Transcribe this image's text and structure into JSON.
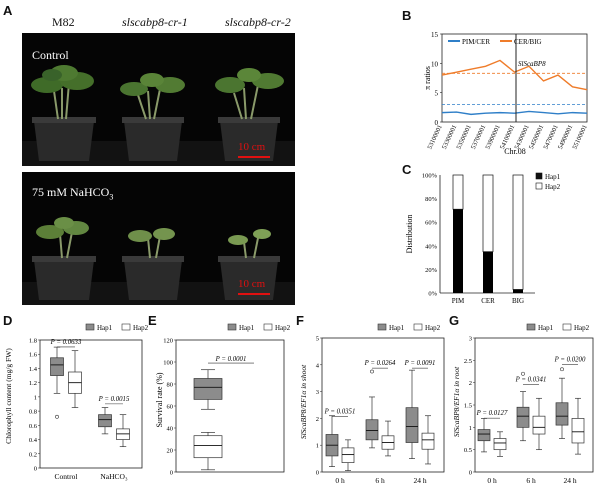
{
  "panels": {
    "A": "A",
    "B": "B",
    "C": "C",
    "D": "D",
    "E": "E",
    "F": "F",
    "G": "G"
  },
  "panelA": {
    "genotypes": [
      "M82",
      "slscabp8-cr-1",
      "slscabp8-cr-2"
    ],
    "control_label": "Control",
    "treatment_label_main": "75 mM NaHCO",
    "treatment_label_sub": "3",
    "scale_bar": "10 cm"
  },
  "panelB": {
    "legend": [
      "PIM/CER",
      "CER/BIG"
    ],
    "ylabel": "π ratios",
    "xlabel": "Chr.08",
    "gene_label": "SlScaBP8",
    "yticks": [
      "0",
      "5",
      "10",
      "15"
    ],
    "xticks": [
      "53100001",
      "53300001",
      "53500001",
      "53700001",
      "53900001",
      "54100001",
      "54300001",
      "54500001",
      "54700001",
      "54900001",
      "55100001"
    ],
    "colors": {
      "pim_cer": "#2f7fc8",
      "cer_big": "#ef7c2a"
    }
  },
  "panelC": {
    "ylabel": "Distribution",
    "legend": [
      "Hap1",
      "Hap2"
    ],
    "yticks": [
      "0%",
      "20%",
      "40%",
      "60%",
      "80%",
      "100%"
    ]
  },
  "panelD": {
    "ylabel": "Chlorophyll content (mg/g FW)",
    "legend": [
      "Hap1",
      "Hap2"
    ],
    "pvalues": [
      "P = 0.0633",
      "P = 0.0015"
    ],
    "groups": [
      "Control",
      "NaHCO₃"
    ],
    "yticks": [
      "0",
      "0.2",
      "0.4",
      "0.6",
      "0.8",
      "1",
      "1.2",
      "1.4",
      "1.6",
      "1.8"
    ]
  },
  "panelE": {
    "ylabel": "Survival rate (%)",
    "legend": [
      "Hap1",
      "Hap2"
    ],
    "pvalue": "P = 0.0001",
    "yticks": [
      "0",
      "20",
      "40",
      "60",
      "80",
      "100",
      "120"
    ]
  },
  "panelF": {
    "ylabel": "SlScaBP8/EF1α in shoot",
    "legend": [
      "Hap1",
      "Hap2"
    ],
    "pvalues": [
      "P = 0.0351",
      "P = 0.0264",
      "P = 0.0091"
    ],
    "groups": [
      "0 h",
      "6 h",
      "24 h"
    ],
    "yticks": [
      "0",
      "1",
      "2",
      "3",
      "4",
      "5"
    ]
  },
  "panelG": {
    "ylabel": "SlScaBP8/EF1α in root",
    "legend": [
      "Hap1",
      "Hap2"
    ],
    "pvalues": [
      "P = 0.0127",
      "P = 0.0341",
      "P = 0.0200"
    ],
    "groups": [
      "0 h",
      "6 h",
      "24 h"
    ],
    "yticks": [
      "0",
      "0.5",
      "1",
      "1.5",
      "2",
      "2.5",
      "3"
    ]
  },
  "chart_data": [
    {
      "type": "line",
      "panel": "B",
      "xlabel": "Chr.08",
      "ylabel": "π ratios",
      "ylim": [
        0,
        15
      ],
      "x": [
        53100001,
        53300001,
        53500001,
        53700001,
        53900001,
        54100001,
        54300001,
        54500001,
        54700001,
        54900001,
        55100001
      ],
      "series": [
        {
          "name": "PIM/CER",
          "values": [
            1.6,
            1.7,
            1.3,
            1.5,
            1.6,
            1.5,
            1.8,
            1.6,
            1.4,
            1.6,
            1.5
          ],
          "threshold": 3.0
        },
        {
          "name": "CER/BIG",
          "values": [
            8.0,
            8.5,
            9.0,
            9.5,
            10.5,
            8.5,
            9.5,
            7.0,
            8.0,
            6.0,
            5.5
          ],
          "threshold": 8.3
        }
      ]
    },
    {
      "type": "bar",
      "panel": "C",
      "ylabel": "Distribution",
      "categories": [
        "PIM",
        "CER",
        "BIG"
      ],
      "series": [
        {
          "name": "Hap1",
          "values": [
            71,
            35,
            3
          ]
        },
        {
          "name": "Hap2",
          "values": [
            29,
            65,
            97
          ]
        }
      ],
      "ylim": [
        0,
        100
      ]
    },
    {
      "type": "box",
      "panel": "D",
      "categories": [
        "Control",
        "NaHCO₃"
      ],
      "series": [
        {
          "name": "Hap1",
          "boxes": [
            [
              1.05,
              1.3,
              1.45,
              1.55,
              1.7
            ],
            [
              0.48,
              0.58,
              0.68,
              0.75,
              0.85
            ]
          ],
          "outliers": [
            [
              0.72
            ],
            []
          ]
        },
        {
          "name": "Hap2",
          "boxes": [
            [
              0.85,
              1.05,
              1.2,
              1.35,
              1.65
            ],
            [
              0.3,
              0.4,
              0.48,
              0.55,
              0.75
            ]
          ],
          "outliers": [
            [],
            []
          ]
        }
      ],
      "ylim": [
        0,
        1.8
      ]
    },
    {
      "type": "box",
      "panel": "E",
      "series": [
        {
          "name": "Hap1",
          "boxes": [
            [
              57,
              66,
              77,
              85,
              93
            ]
          ]
        },
        {
          "name": "Hap2",
          "boxes": [
            [
              2,
              13,
              24,
              33,
              36
            ]
          ]
        }
      ],
      "ylim": [
        0,
        120
      ]
    },
    {
      "type": "box",
      "panel": "F",
      "categories": [
        "0 h",
        "6 h",
        "24 h"
      ],
      "series": [
        {
          "name": "Hap1",
          "boxes": [
            [
              0.2,
              0.6,
              1.0,
              1.4,
              2.1
            ],
            [
              0.9,
              1.2,
              1.55,
              1.95,
              2.8
            ],
            [
              0.5,
              1.1,
              1.7,
              2.4,
              3.8
            ]
          ],
          "outliers": [
            [],
            [
              3.75
            ],
            []
          ]
        },
        {
          "name": "Hap2",
          "boxes": [
            [
              0.05,
              0.35,
              0.65,
              0.9,
              1.2
            ],
            [
              0.6,
              0.85,
              1.1,
              1.35,
              1.9
            ],
            [
              0.3,
              0.85,
              1.2,
              1.45,
              2.1
            ]
          ],
          "outliers": [
            [],
            [],
            []
          ]
        }
      ],
      "ylim": [
        0,
        5
      ]
    },
    {
      "type": "box",
      "panel": "G",
      "categories": [
        "0 h",
        "6 h",
        "24 h"
      ],
      "series": [
        {
          "name": "Hap1",
          "boxes": [
            [
              0.45,
              0.7,
              0.85,
              0.95,
              1.2
            ],
            [
              0.7,
              1.0,
              1.25,
              1.45,
              1.8
            ],
            [
              0.75,
              1.05,
              1.25,
              1.55,
              2.1
            ]
          ],
          "outliers": [
            [],
            [
              2.2
            ],
            [
              2.3
            ]
          ]
        },
        {
          "name": "Hap2",
          "boxes": [
            [
              0.35,
              0.5,
              0.65,
              0.75,
              0.9
            ],
            [
              0.5,
              0.85,
              1.0,
              1.25,
              1.65
            ],
            [
              0.4,
              0.65,
              0.9,
              1.2,
              1.65
            ]
          ],
          "outliers": [
            [],
            [],
            []
          ]
        }
      ],
      "ylim": [
        0,
        3
      ]
    }
  ]
}
